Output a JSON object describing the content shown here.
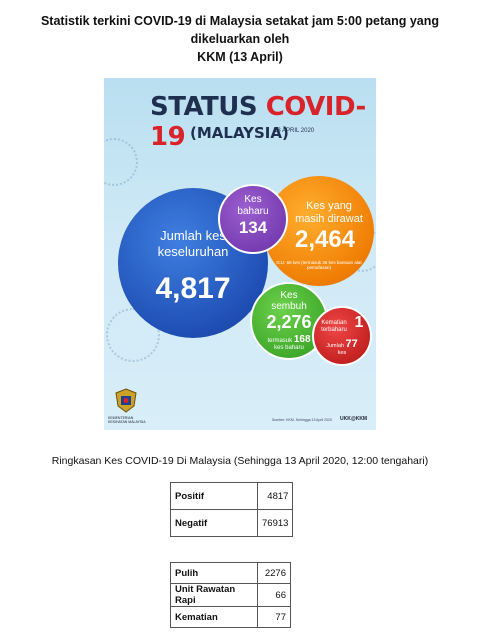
{
  "headline": {
    "line1": "Statistik terkini COVID-19 di Malaysia setakat jam 5:00 petang yang dikeluarkan oleh",
    "line2": "KKM (13 April)"
  },
  "infographic": {
    "title_status": "STATUS",
    "title_covid": "COVID-19",
    "subtitle": "(MALAYSIA)",
    "date": "13 APRIL 2020",
    "total": {
      "line1": "Jumlah kes",
      "line2": "keseluruhan",
      "value": "4,817"
    },
    "new_cases": {
      "line1": "Kes",
      "line2": "baharu",
      "value": "134"
    },
    "in_treatment": {
      "line1": "Kes yang",
      "line2": "masih dirawat",
      "value": "2,464",
      "note": "ICU: 66 kes (termasuk 36 kes bantuan alat pernafasan)"
    },
    "recovered": {
      "line1": "Kes",
      "line2": "sembuh",
      "value": "2,276",
      "sub_prefix": "termasuk",
      "sub_value": "168",
      "sub_suffix": "kes baharu"
    },
    "deaths": {
      "line1": "Kematian",
      "line2": "terbaharu",
      "value": "1",
      "sub_prefix": "Jumlah",
      "sub_label2": "kes",
      "sub_value": "77"
    },
    "ministry_label": "KEMENTERIAN KESIHATAN MALAYSIA",
    "source": "Sumber: KKM, Sehingga 13 April 2020",
    "tag": "UKK@KKM"
  },
  "summary": {
    "title": "Ringkasan Kes COVID-19 Di Malaysia (Sehingga 13 April 2020, 12:00 tengahari)",
    "table1": [
      {
        "name": "Positif",
        "value": "4817"
      },
      {
        "name": "Negatif",
        "value": "76913"
      }
    ],
    "table2": [
      {
        "name": "Pulih",
        "value": "2276"
      },
      {
        "name": "Unit Rawatan Rapi",
        "value": "66"
      },
      {
        "name": "Kematian",
        "value": "77"
      }
    ]
  },
  "colors": {
    "total_bubble": "#1f4fb5",
    "new_bubble": "#6a2fa6",
    "treatment_bubble": "#f07e05",
    "recovered_bubble": "#2f9a1e",
    "deaths_bubble": "#b31313",
    "title_red": "#d8232a"
  }
}
